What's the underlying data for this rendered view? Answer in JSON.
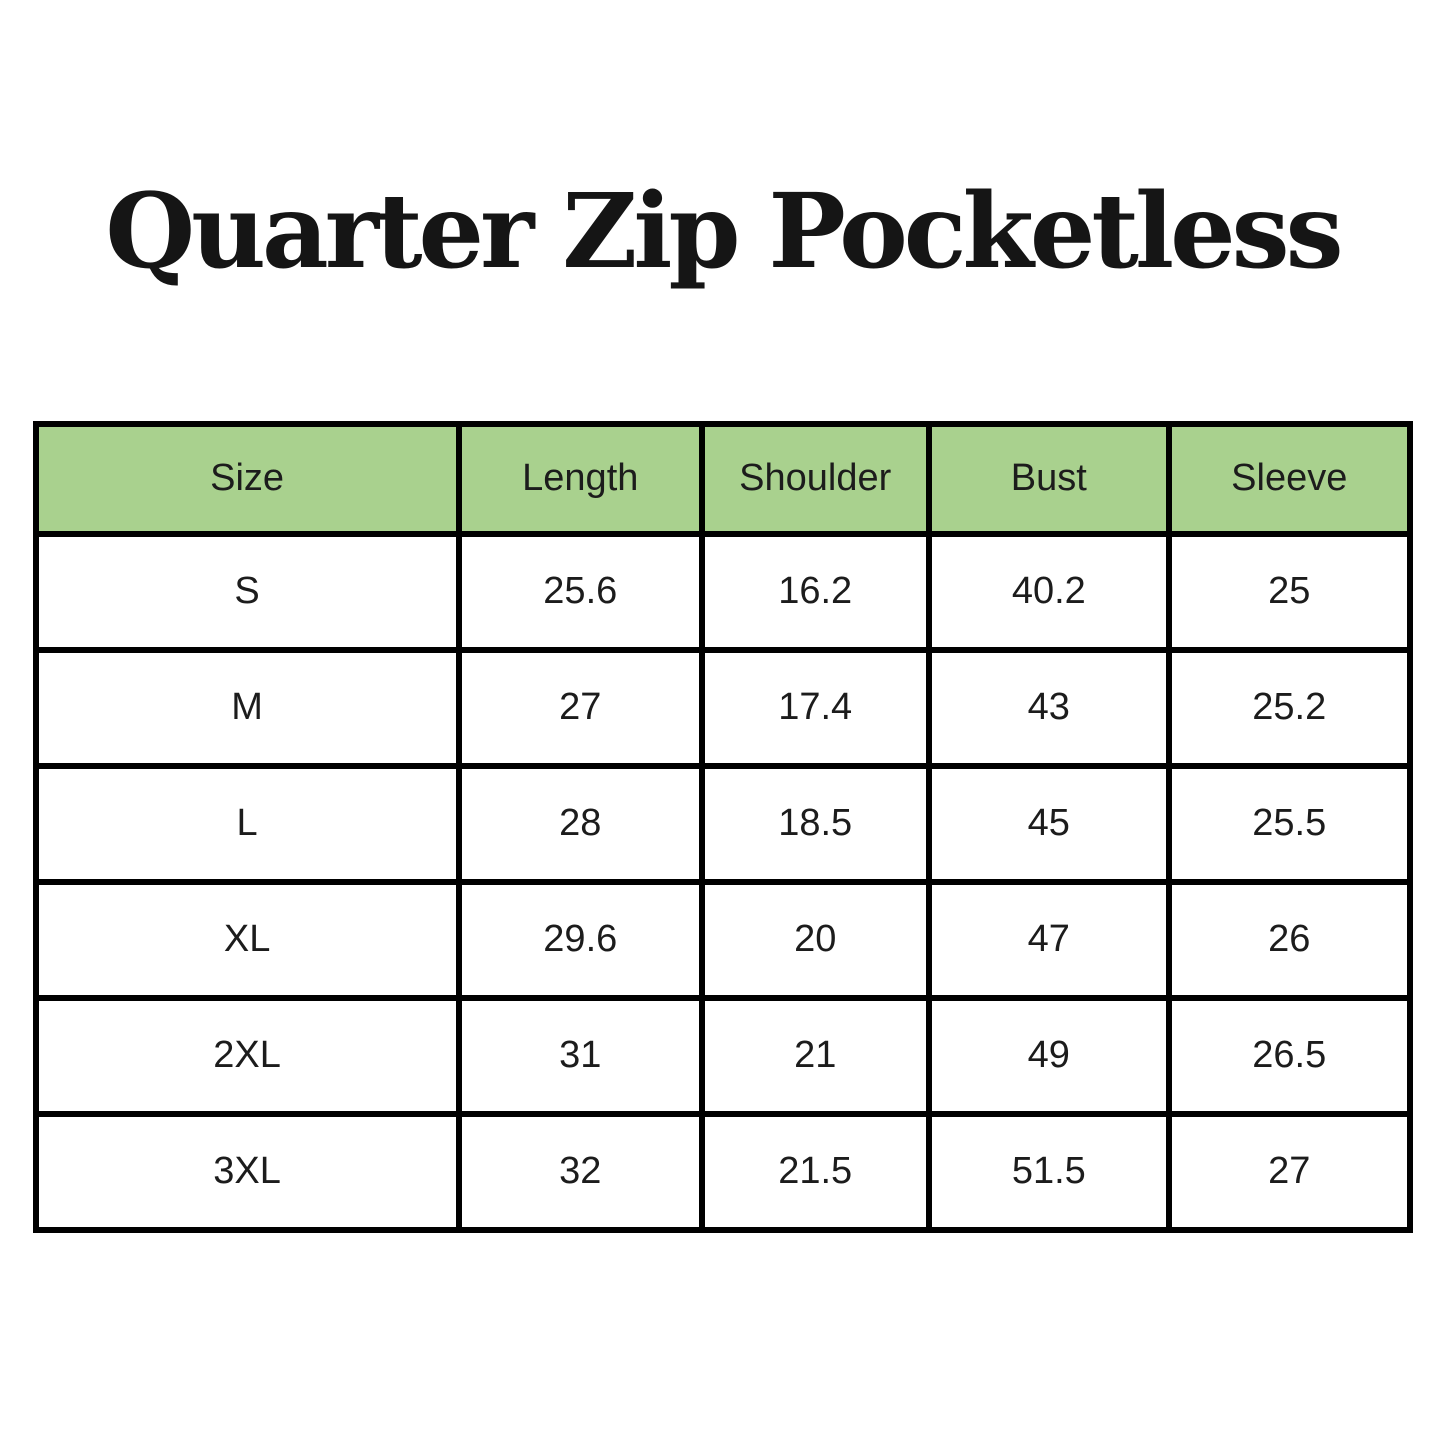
{
  "page": {
    "title": "Quarter Zip Pocketless"
  },
  "colors": {
    "background": "#ffffff",
    "header_bg": "#a9d18e",
    "border": "#000000",
    "text": "#1c1c1c",
    "title_color": "#151515"
  },
  "chart_data": {
    "type": "table",
    "title": "Quarter Zip Pocketless",
    "columns": [
      "Size",
      "Length",
      "Shoulder",
      "Bust",
      "Sleeve"
    ],
    "rows": [
      [
        "S",
        "25.6",
        "16.2",
        "40.2",
        "25"
      ],
      [
        "M",
        "27",
        "17.4",
        "43",
        "25.2"
      ],
      [
        "L",
        "28",
        "18.5",
        "45",
        "25.5"
      ],
      [
        "XL",
        "29.6",
        "20",
        "47",
        "26"
      ],
      [
        "2XL",
        "31",
        "21",
        "49",
        "26.5"
      ],
      [
        "3XL",
        "32",
        "21.5",
        "51.5",
        "27"
      ]
    ],
    "layout": {
      "header_fill": "#a9d18e",
      "cell_fill": "#ffffff",
      "grid": true,
      "grid_color": "#000000"
    }
  }
}
